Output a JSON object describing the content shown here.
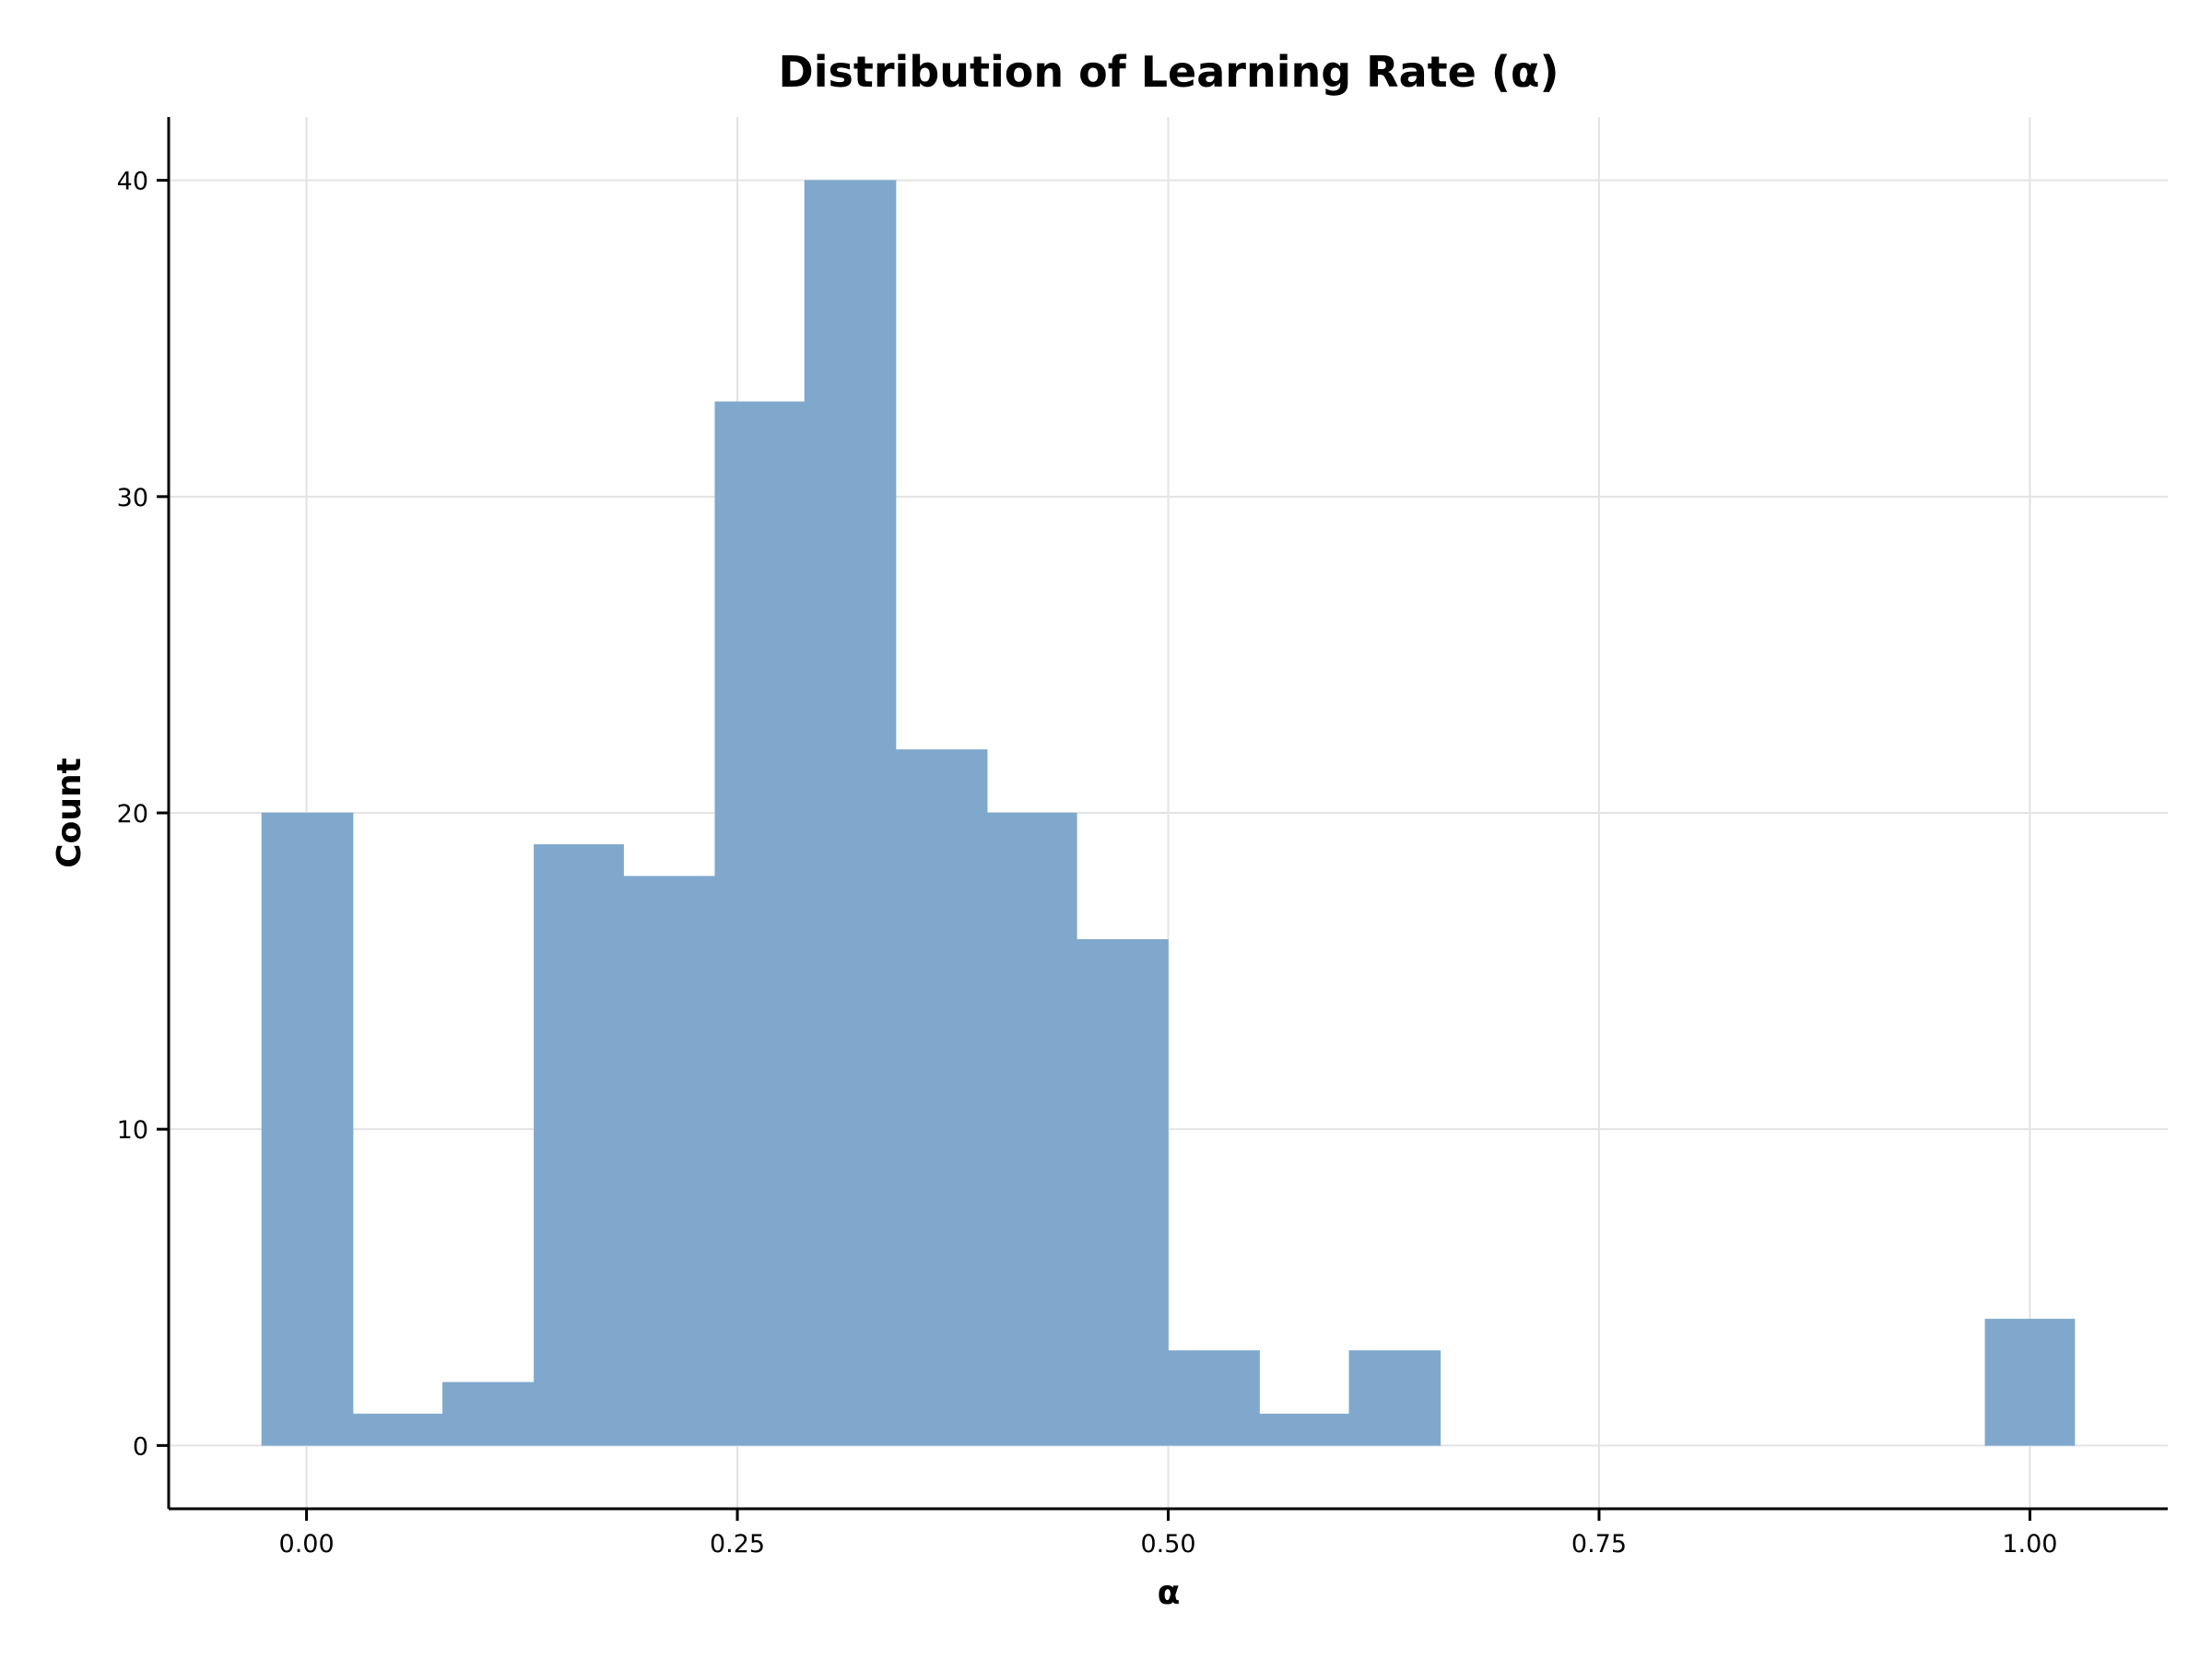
{
  "chart_data": {
    "type": "bar",
    "title": "Distribution of Learning Rate (α)",
    "xlabel": "α",
    "ylabel": "Count",
    "xlim": [
      -0.08,
      1.08
    ],
    "ylim": [
      -2,
      42
    ],
    "xticks": [
      0.0,
      0.25,
      0.5,
      0.75,
      1.0
    ],
    "xtick_labels": [
      "0.00",
      "0.25",
      "0.50",
      "0.75",
      "1.00"
    ],
    "yticks": [
      0,
      10,
      20,
      30,
      40
    ],
    "ytick_labels": [
      "0",
      "10",
      "20",
      "30",
      "40"
    ],
    "grid": true,
    "bar_color": "#7fa8cc",
    "bins": [
      {
        "x0": -0.026,
        "x1": 0.027,
        "count": 20
      },
      {
        "x0": 0.027,
        "x1": 0.079,
        "count": 1
      },
      {
        "x0": 0.079,
        "x1": 0.132,
        "count": 2
      },
      {
        "x0": 0.132,
        "x1": 0.184,
        "count": 19
      },
      {
        "x0": 0.184,
        "x1": 0.237,
        "count": 18
      },
      {
        "x0": 0.237,
        "x1": 0.289,
        "count": 33
      },
      {
        "x0": 0.289,
        "x1": 0.342,
        "count": 40
      },
      {
        "x0": 0.342,
        "x1": 0.395,
        "count": 22
      },
      {
        "x0": 0.395,
        "x1": 0.447,
        "count": 20
      },
      {
        "x0": 0.447,
        "x1": 0.5,
        "count": 16
      },
      {
        "x0": 0.5,
        "x1": 0.553,
        "count": 3
      },
      {
        "x0": 0.553,
        "x1": 0.605,
        "count": 1
      },
      {
        "x0": 0.605,
        "x1": 0.658,
        "count": 3
      },
      {
        "x0": 0.974,
        "x1": 1.026,
        "count": 4
      }
    ]
  }
}
